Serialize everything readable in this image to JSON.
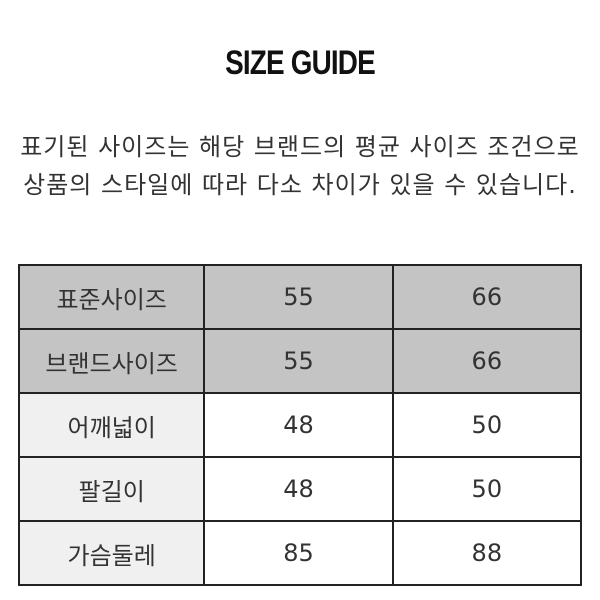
{
  "title": "SIZE GUIDE",
  "note": {
    "line1": "표기된 사이즈는 해당 브랜드의 평균 사이즈 조건으로",
    "line2": "상품의 스타일에 따라 다소 차이가 있을 수 있습니다."
  },
  "colors": {
    "header_bg": "#c4c4c4",
    "label_bg": "#f0f0f0",
    "border": "#222222"
  },
  "table": {
    "rows": [
      {
        "label": "표준사이즈",
        "values": [
          "55",
          "66"
        ],
        "shaded": true
      },
      {
        "label": "브랜드사이즈",
        "values": [
          "55",
          "66"
        ],
        "shaded": true
      },
      {
        "label": "어깨넓이",
        "values": [
          "48",
          "50"
        ],
        "shaded": false
      },
      {
        "label": "팔길이",
        "values": [
          "48",
          "50"
        ],
        "shaded": false
      },
      {
        "label": "가슴둘레",
        "values": [
          "85",
          "88"
        ],
        "shaded": false
      }
    ]
  }
}
